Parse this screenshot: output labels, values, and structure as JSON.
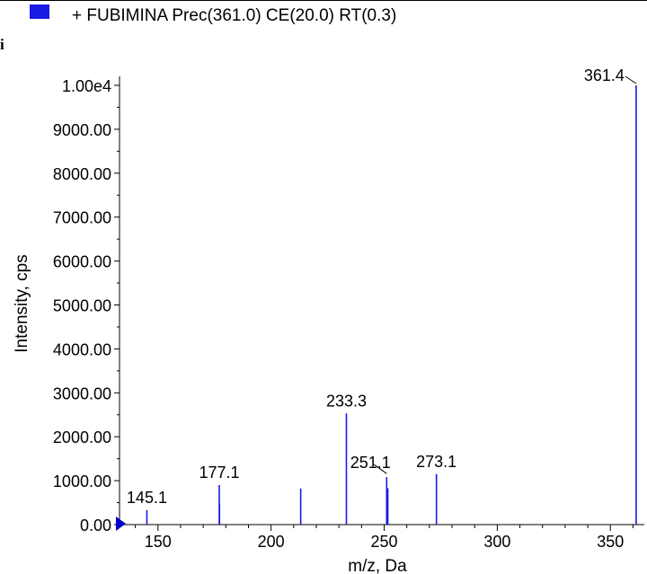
{
  "header": {
    "legend_label": "+ FUBIMINA Prec(361.0) CE(20.0) RT(0.3)",
    "legend_color": "#1a1ae6",
    "corner_text": "i"
  },
  "chart_data": {
    "type": "bar",
    "title": "",
    "xlabel": "m/z, Da",
    "ylabel": "Intensity, cps",
    "xlim": [
      133,
      365
    ],
    "ylim": [
      0,
      10000
    ],
    "x_ticks": [
      150,
      200,
      250,
      300,
      350
    ],
    "x_tick_labels": [
      "150",
      "200",
      "250",
      "300",
      "350"
    ],
    "y_ticks": [
      0,
      1000,
      2000,
      3000,
      4000,
      5000,
      6000,
      7000,
      8000,
      9000,
      10000
    ],
    "y_tick_labels": [
      "0.00",
      "1000.00",
      "2000.00",
      "3000.00",
      "4000.00",
      "5000.00",
      "6000.00",
      "7000.00",
      "8000.00",
      "9000.00",
      "1.00e4"
    ],
    "bar_color": "#1a1ae6",
    "peaks": [
      {
        "x": 145.1,
        "y": 330,
        "label": "145.1"
      },
      {
        "x": 177.1,
        "y": 900,
        "label": "177.1"
      },
      {
        "x": 177.2,
        "y": 480,
        "label": ""
      },
      {
        "x": 213.1,
        "y": 820,
        "label": ""
      },
      {
        "x": 233.3,
        "y": 2530,
        "label": "233.3"
      },
      {
        "x": 251.1,
        "y": 1080,
        "label": "251.1"
      },
      {
        "x": 251.6,
        "y": 830,
        "label": ""
      },
      {
        "x": 273.1,
        "y": 1150,
        "label": "273.1"
      },
      {
        "x": 361.4,
        "y": 10000,
        "label": "361.4"
      }
    ]
  }
}
